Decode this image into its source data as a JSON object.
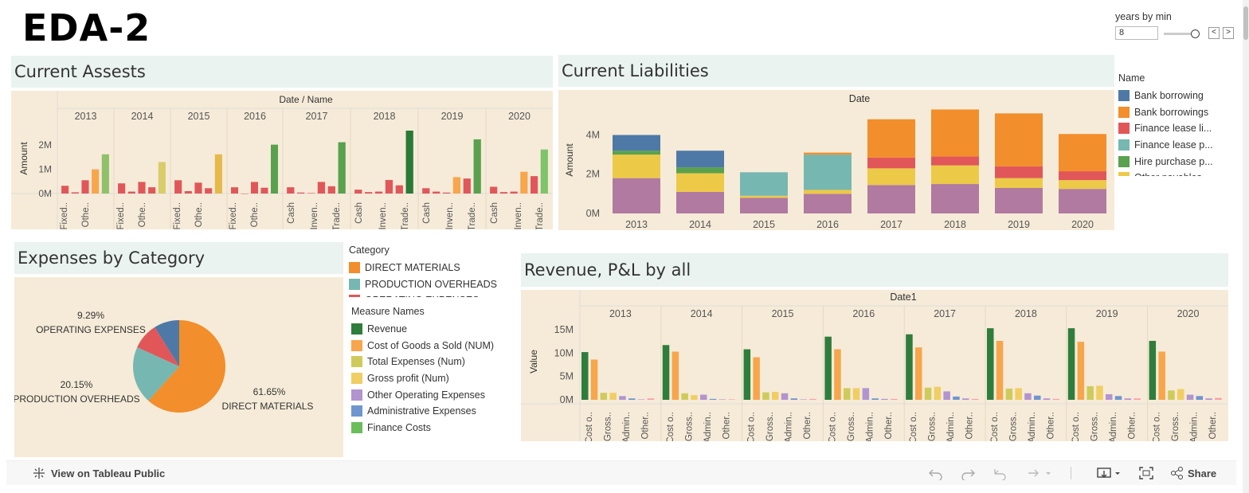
{
  "dashboard": {
    "title": "EDA-2"
  },
  "parameter": {
    "label": "years by min",
    "value": "8",
    "prev": "<",
    "next": ">"
  },
  "colors": {
    "bg_panel": "#f6ebd8",
    "head": "#eaf3f0",
    "blue": "#4e79a7",
    "orange": "#f28e2b",
    "red": "#e15759",
    "teal": "#76b7b2",
    "green": "#59a14f",
    "yellow": "#edc948",
    "purple": "#b07aa1",
    "pink": "#ff9da7",
    "darkgreen": "#2f7d3c",
    "lightorange": "#f7a64c",
    "khaki": "#cfcb5a",
    "gold": "#f1ce63",
    "lavender": "#b294d0",
    "periwinkle": "#6f95cf",
    "lightgreen": "#6bbd5b"
  },
  "current_assets": {
    "title": "Current Assests",
    "header": "Date / Name",
    "yaxis": "Amount",
    "chart_data": {
      "type": "bar",
      "years": [
        "2013",
        "2014",
        "2015",
        "2016",
        "2017",
        "2018",
        "2019",
        "2020"
      ],
      "yticks": [
        "2M",
        "1M",
        "0M"
      ],
      "ylim": [
        0,
        2.6
      ],
      "groups": [
        {
          "year": "2013",
          "names": [
            "Fixed..",
            "Othe.."
          ],
          "values": [
            0.32,
            0.05,
            0.55,
            1.0,
            1.62
          ]
        },
        {
          "year": "2014",
          "names": [
            "Fixed..",
            "Othe.."
          ],
          "values": [
            0.42,
            0.08,
            0.48,
            0.26,
            1.3
          ]
        },
        {
          "year": "2015",
          "names": [
            "Fixed..",
            "Othe.."
          ],
          "values": [
            0.55,
            0.1,
            0.45,
            0.22,
            1.62
          ]
        },
        {
          "year": "2016",
          "names": [
            "Fixed..",
            "Othe.."
          ],
          "values": [
            0.26,
            0.0,
            0.48,
            0.24,
            2.02
          ]
        },
        {
          "year": "2017",
          "names": [
            "Cash",
            "Inven..",
            "Trade.."
          ],
          "values": [
            0.26,
            0.04,
            0.02,
            0.48,
            0.3,
            2.12
          ]
        },
        {
          "year": "2018",
          "names": [
            "Cash",
            "Inven..",
            "Trade.."
          ],
          "values": [
            0.16,
            0.06,
            0.08,
            0.56,
            0.34,
            2.6
          ]
        },
        {
          "year": "2019",
          "names": [
            "Cash",
            "Inven..",
            "Trade.."
          ],
          "values": [
            0.22,
            0.08,
            0.04,
            0.68,
            0.62,
            2.24
          ]
        },
        {
          "year": "2020",
          "names": [
            "Cash",
            "Inven..",
            "Trade.."
          ],
          "values": [
            0.28,
            0.06,
            0.08,
            0.9,
            0.72,
            1.82
          ]
        }
      ]
    },
    "bottom_labels": [
      "Fixed..",
      "Othe..",
      "Fixed..",
      "Othe..",
      "Fixed..",
      "Othe..",
      "Fixed..",
      "Othe..",
      "Cash",
      "Inven..",
      "Trade..",
      "Cash",
      "Inven..",
      "Trade..",
      "Cash",
      "Inven..",
      "Trade..",
      "Cash",
      "Inven..",
      "Trade.."
    ]
  },
  "current_liabilities": {
    "title": "Current Liabilities",
    "header": "Date",
    "yaxis": "Amount",
    "chart_data": {
      "type": "bar",
      "stacked": true,
      "categories": [
        "2013",
        "2014",
        "2015",
        "2016",
        "2017",
        "2018",
        "2019",
        "2020"
      ],
      "yticks": [
        "4M",
        "2M",
        "0M"
      ],
      "ylim": [
        0,
        5.4
      ],
      "series": [
        {
          "name": "Other payables (purple)",
          "values": [
            1.8,
            1.1,
            0.8,
            1.0,
            1.45,
            1.5,
            1.3,
            1.25
          ]
        },
        {
          "name": "Hire purchase (yellow)",
          "values": [
            1.2,
            0.95,
            0.1,
            0.2,
            0.85,
            0.95,
            0.5,
            0.45
          ]
        },
        {
          "name": "Finance lease (teal)",
          "values": [
            0.0,
            0.0,
            1.2,
            1.8,
            0.0,
            0.0,
            0.0,
            0.0
          ]
        },
        {
          "name": "Finance lease liab (red)",
          "values": [
            0.0,
            0.0,
            0.0,
            0.0,
            0.55,
            0.45,
            0.6,
            0.45
          ]
        },
        {
          "name": "Hire purchase (green)",
          "values": [
            0.2,
            0.3,
            0.0,
            0.0,
            0.0,
            0.0,
            0.0,
            0.0
          ]
        },
        {
          "name": "Bank borrowings (orange)",
          "values": [
            0.0,
            0.0,
            0.0,
            0.1,
            1.95,
            2.4,
            2.7,
            1.9
          ]
        },
        {
          "name": "Bank borrowing (blue)",
          "values": [
            0.8,
            0.85,
            0.0,
            0.0,
            0.0,
            0.0,
            0.0,
            0.0
          ]
        }
      ]
    },
    "legend": {
      "title": "Name",
      "items": [
        "Bank borrowing",
        "Bank borrowings",
        "Finance lease li...",
        "Finance lease p...",
        "Hire purchase p...",
        "Other payables"
      ]
    }
  },
  "expenses": {
    "title": "Expenses by Category",
    "chart_data": {
      "type": "pie",
      "slices": [
        {
          "label": "DIRECT MATERIALS",
          "pct": "61.65%",
          "value": 61.65
        },
        {
          "label": "PRODUCTION OVERHEADS",
          "pct": "20.15%",
          "value": 20.15
        },
        {
          "label": "OPERATING EXPENSES",
          "pct": "9.29%",
          "value": 9.29
        },
        {
          "label": "",
          "pct": "",
          "value": 8.91
        }
      ]
    },
    "legend": {
      "title": "Category",
      "items": [
        "DIRECT MATERIALS",
        "PRODUCTION OVERHEADS",
        "OPERATING EXPENSES"
      ]
    }
  },
  "measure_legend": {
    "title": "Measure Names",
    "items": [
      "Revenue",
      "Cost of Goods a Sold (NUM)",
      "Total Expenses (Num)",
      "Gross profit (Num)",
      "Other Operating Expenses",
      "Administrative Expenses",
      "Finance Costs"
    ]
  },
  "revenue": {
    "title": "Revenue, P&L by all",
    "header": "Date1",
    "yaxis": "Value",
    "chart_data": {
      "type": "bar",
      "years": [
        "2013",
        "2014",
        "2015",
        "2016",
        "2017",
        "2018",
        "2019",
        "2020"
      ],
      "yticks": [
        "15M",
        "10M",
        "5M",
        "0M"
      ],
      "ylim": [
        0,
        16
      ],
      "series_names": [
        "Revenue",
        "Cost of Goods a Sold (NUM)",
        "Total Expenses (Num)",
        "Gross profit (Num)",
        "Other Operating Expenses",
        "Administrative Expenses",
        "Finance Costs"
      ],
      "values": [
        [
          10.2,
          8.6,
          1.5,
          1.5,
          0.8,
          0.3,
          0.1,
          0.3
        ],
        [
          11.7,
          10.3,
          1.4,
          1.0,
          1.1,
          0.2,
          0.1,
          0.1
        ],
        [
          10.8,
          9.1,
          1.6,
          1.7,
          1.4,
          0.3,
          0.1,
          0.2
        ],
        [
          13.5,
          10.8,
          2.5,
          2.5,
          2.5,
          0.3,
          0.2,
          0.2
        ],
        [
          14.0,
          11.2,
          2.6,
          2.8,
          1.8,
          0.7,
          0.3,
          0.2
        ],
        [
          15.3,
          12.6,
          2.4,
          2.5,
          1.4,
          0.9,
          0.3,
          0.2
        ],
        [
          15.3,
          12.4,
          2.9,
          3.0,
          1.2,
          0.8,
          0.3,
          0.3
        ],
        [
          12.6,
          10.3,
          2.0,
          2.3,
          1.1,
          0.8,
          0.3,
          0.4
        ]
      ]
    },
    "bottom_labels": [
      "Cost o..",
      "Gross..",
      "Admin..",
      "Other.."
    ]
  },
  "toolbar": {
    "view_label": "View on Tableau Public",
    "share_label": "Share"
  }
}
